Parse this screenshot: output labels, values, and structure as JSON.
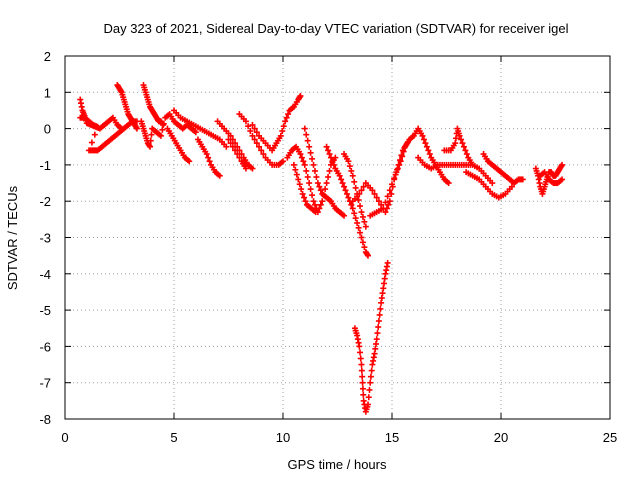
{
  "chart_data": {
    "type": "scatter",
    "title": "Day 323 of 2021, Sidereal Day-to-day VTEC variation (SDTVAR) for receiver igel",
    "xlabel": "GPS time / hours",
    "ylabel": "SDTVAR / TECUs",
    "xlim": [
      0,
      25
    ],
    "ylim": [
      -8,
      2
    ],
    "xticks": [
      0,
      5,
      10,
      15,
      20,
      25
    ],
    "xtick_labels": [
      "0",
      "5",
      "10",
      "15",
      "20",
      "25"
    ],
    "yticks": [
      2,
      1,
      0,
      -1,
      -2,
      -3,
      -4,
      -5,
      -6,
      -7,
      -8
    ],
    "ytick_labels": [
      "2",
      "1",
      "0",
      "-1",
      "-2",
      "-3",
      "-4",
      "-5",
      "-6",
      "-7",
      "-8"
    ],
    "grid": true,
    "marker": "plus",
    "series": [
      {
        "name": "SDTVAR",
        "color": "#ff0000",
        "points": [
          [
            0.7,
            0.8
          ],
          [
            0.8,
            0.5
          ],
          [
            0.9,
            0.35
          ],
          [
            1.0,
            0.15
          ],
          [
            1.2,
            0.1
          ],
          [
            1.4,
            0.05
          ],
          [
            1.6,
            0.0
          ],
          [
            1.8,
            0.1
          ],
          [
            2.0,
            0.2
          ],
          [
            2.2,
            0.3
          ],
          [
            2.4,
            0.1
          ],
          [
            2.6,
            0.0
          ],
          [
            0.7,
            0.3
          ],
          [
            0.9,
            0.3
          ],
          [
            1.1,
            0.2
          ],
          [
            1.3,
            0.1
          ],
          [
            1.5,
            0.05
          ],
          [
            1.1,
            -0.6
          ],
          [
            1.3,
            -0.6
          ],
          [
            1.5,
            -0.6
          ],
          [
            1.7,
            -0.5
          ],
          [
            1.9,
            -0.4
          ],
          [
            2.1,
            -0.3
          ],
          [
            2.3,
            -0.2
          ],
          [
            2.5,
            -0.1
          ],
          [
            2.7,
            0.0
          ],
          [
            2.9,
            0.1
          ],
          [
            3.1,
            0.2
          ],
          [
            3.3,
            0.2
          ],
          [
            2.4,
            1.2
          ],
          [
            2.5,
            1.1
          ],
          [
            2.6,
            1.0
          ],
          [
            2.7,
            0.8
          ],
          [
            2.8,
            0.6
          ],
          [
            2.9,
            0.4
          ],
          [
            3.0,
            0.3
          ],
          [
            3.1,
            0.2
          ],
          [
            3.2,
            0.1
          ],
          [
            3.3,
            0.0
          ],
          [
            3.6,
            1.2
          ],
          [
            3.7,
            1.0
          ],
          [
            3.8,
            0.8
          ],
          [
            3.9,
            0.6
          ],
          [
            4.0,
            0.5
          ],
          [
            4.1,
            0.4
          ],
          [
            4.2,
            0.3
          ],
          [
            4.3,
            0.2
          ],
          [
            4.4,
            0.2
          ],
          [
            4.5,
            0.1
          ],
          [
            3.5,
            0.2
          ],
          [
            3.6,
            0.0
          ],
          [
            3.7,
            -0.2
          ],
          [
            3.8,
            -0.4
          ],
          [
            3.9,
            -0.5
          ],
          [
            4.0,
            0.0
          ],
          [
            4.2,
            -0.1
          ],
          [
            4.4,
            -0.2
          ],
          [
            4.6,
            0.3
          ],
          [
            4.8,
            0.4
          ],
          [
            5.0,
            0.2
          ],
          [
            5.2,
            0.1
          ],
          [
            5.4,
            0.0
          ],
          [
            5.6,
            0.1
          ],
          [
            5.8,
            0.0
          ],
          [
            6.0,
            -0.1
          ],
          [
            4.7,
            0.0
          ],
          [
            4.9,
            -0.2
          ],
          [
            5.1,
            -0.4
          ],
          [
            5.3,
            -0.6
          ],
          [
            5.5,
            -0.8
          ],
          [
            5.7,
            -0.9
          ],
          [
            5.0,
            0.5
          ],
          [
            5.3,
            0.3
          ],
          [
            5.6,
            0.2
          ],
          [
            5.9,
            0.1
          ],
          [
            6.2,
            0.0
          ],
          [
            6.5,
            -0.1
          ],
          [
            6.8,
            -0.2
          ],
          [
            7.1,
            -0.3
          ],
          [
            7.4,
            -0.5
          ],
          [
            6.1,
            -0.3
          ],
          [
            6.3,
            -0.5
          ],
          [
            6.5,
            -0.7
          ],
          [
            6.7,
            -1.0
          ],
          [
            6.9,
            -1.2
          ],
          [
            7.1,
            -1.3
          ],
          [
            7.0,
            0.2
          ],
          [
            7.3,
            0.0
          ],
          [
            7.6,
            -0.2
          ],
          [
            7.9,
            -0.5
          ],
          [
            8.2,
            -0.8
          ],
          [
            8.4,
            -1.0
          ],
          [
            8.6,
            -1.1
          ],
          [
            7.5,
            -0.3
          ],
          [
            7.8,
            -0.6
          ],
          [
            8.1,
            -0.9
          ],
          [
            8.3,
            -1.1
          ],
          [
            8.0,
            0.4
          ],
          [
            8.3,
            0.2
          ],
          [
            8.6,
            -0.2
          ],
          [
            8.9,
            -0.5
          ],
          [
            9.2,
            -0.8
          ],
          [
            9.5,
            -1.0
          ],
          [
            9.8,
            -1.0
          ],
          [
            10.0,
            -0.9
          ],
          [
            8.6,
            0.1
          ],
          [
            8.9,
            -0.2
          ],
          [
            9.2,
            -0.4
          ],
          [
            9.5,
            -0.6
          ],
          [
            9.7,
            -0.4
          ],
          [
            9.9,
            -0.2
          ],
          [
            10.1,
            0.2
          ],
          [
            10.3,
            0.5
          ],
          [
            10.5,
            0.6
          ],
          [
            10.7,
            0.8
          ],
          [
            10.8,
            0.9
          ],
          [
            10.2,
            -0.8
          ],
          [
            10.4,
            -0.6
          ],
          [
            10.6,
            -0.5
          ],
          [
            10.8,
            -0.7
          ],
          [
            11.0,
            -1.0
          ],
          [
            11.2,
            -1.5
          ],
          [
            11.4,
            -2.0
          ],
          [
            11.6,
            -2.3
          ],
          [
            11.8,
            -2.0
          ],
          [
            12.0,
            -1.5
          ],
          [
            12.2,
            -1.0
          ],
          [
            12.4,
            -0.8
          ],
          [
            10.5,
            -1.0
          ],
          [
            10.7,
            -1.4
          ],
          [
            10.9,
            -1.8
          ],
          [
            11.1,
            -2.1
          ],
          [
            11.3,
            -2.2
          ],
          [
            11.5,
            -2.3
          ],
          [
            11.0,
            0.0
          ],
          [
            11.2,
            -0.5
          ],
          [
            11.4,
            -1.0
          ],
          [
            11.6,
            -1.5
          ],
          [
            11.8,
            -1.8
          ],
          [
            12.0,
            -1.9
          ],
          [
            12.2,
            -2.0
          ],
          [
            12.4,
            -2.2
          ],
          [
            12.6,
            -2.3
          ],
          [
            12.8,
            -2.4
          ],
          [
            12.0,
            -0.5
          ],
          [
            12.2,
            -0.8
          ],
          [
            12.4,
            -1.1
          ],
          [
            12.6,
            -1.3
          ],
          [
            12.8,
            -1.6
          ],
          [
            13.0,
            -1.9
          ],
          [
            13.2,
            -2.2
          ],
          [
            13.4,
            -2.6
          ],
          [
            13.6,
            -3.0
          ],
          [
            13.8,
            -3.4
          ],
          [
            13.9,
            -3.5
          ],
          [
            12.8,
            -0.7
          ],
          [
            13.0,
            -0.9
          ],
          [
            13.2,
            -1.3
          ],
          [
            13.4,
            -1.8
          ],
          [
            13.6,
            -2.3
          ],
          [
            13.8,
            -2.7
          ],
          [
            13.3,
            -5.5
          ],
          [
            13.4,
            -5.7
          ],
          [
            13.5,
            -6.0
          ],
          [
            13.6,
            -6.5
          ],
          [
            13.65,
            -7.0
          ],
          [
            13.7,
            -7.5
          ],
          [
            13.8,
            -7.8
          ],
          [
            13.9,
            -7.6
          ],
          [
            14.0,
            -7.0
          ],
          [
            14.1,
            -6.5
          ],
          [
            14.2,
            -6.2
          ],
          [
            14.3,
            -5.8
          ],
          [
            14.4,
            -5.3
          ],
          [
            14.5,
            -4.8
          ],
          [
            14.6,
            -4.4
          ],
          [
            14.7,
            -4.0
          ],
          [
            14.8,
            -3.7
          ],
          [
            13.2,
            -2.0
          ],
          [
            13.5,
            -1.8
          ],
          [
            13.8,
            -1.5
          ],
          [
            14.1,
            -1.7
          ],
          [
            14.4,
            -2.0
          ],
          [
            14.7,
            -2.3
          ],
          [
            14.9,
            -2.0
          ],
          [
            15.1,
            -1.4
          ],
          [
            15.3,
            -1.0
          ],
          [
            15.5,
            -0.6
          ],
          [
            15.7,
            -0.4
          ],
          [
            14.0,
            -2.4
          ],
          [
            14.3,
            -2.3
          ],
          [
            14.6,
            -2.2
          ],
          [
            14.9,
            -1.7
          ],
          [
            15.2,
            -1.2
          ],
          [
            15.4,
            -0.9
          ],
          [
            15.6,
            -0.5
          ],
          [
            15.8,
            -0.3
          ],
          [
            16.0,
            -0.2
          ],
          [
            16.2,
            0.0
          ],
          [
            16.4,
            -0.2
          ],
          [
            16.6,
            -0.5
          ],
          [
            16.8,
            -0.8
          ],
          [
            17.0,
            -1.0
          ],
          [
            17.2,
            -1.2
          ],
          [
            17.4,
            -1.4
          ],
          [
            17.6,
            -1.5
          ],
          [
            16.2,
            -0.8
          ],
          [
            16.5,
            -1.0
          ],
          [
            16.8,
            -1.1
          ],
          [
            17.1,
            -1.0
          ],
          [
            17.4,
            -1.0
          ],
          [
            17.7,
            -1.0
          ],
          [
            18.0,
            -1.0
          ],
          [
            18.3,
            -1.0
          ],
          [
            18.6,
            -1.0
          ],
          [
            17.4,
            -0.6
          ],
          [
            17.7,
            -0.6
          ],
          [
            17.9,
            -0.4
          ],
          [
            18.0,
            0.0
          ],
          [
            18.1,
            -0.2
          ],
          [
            18.3,
            -0.5
          ],
          [
            18.5,
            -0.8
          ],
          [
            18.7,
            -1.0
          ],
          [
            19.0,
            -1.1
          ],
          [
            19.3,
            -1.3
          ],
          [
            19.6,
            -1.5
          ],
          [
            18.4,
            -1.2
          ],
          [
            18.7,
            -1.3
          ],
          [
            19.0,
            -1.4
          ],
          [
            19.3,
            -1.6
          ],
          [
            19.6,
            -1.8
          ],
          [
            19.9,
            -1.9
          ],
          [
            20.2,
            -1.8
          ],
          [
            20.5,
            -1.6
          ],
          [
            19.2,
            -0.7
          ],
          [
            19.4,
            -0.9
          ],
          [
            19.6,
            -1.0
          ],
          [
            19.8,
            -1.1
          ],
          [
            20.0,
            -1.2
          ],
          [
            20.2,
            -1.3
          ],
          [
            20.4,
            -1.4
          ],
          [
            20.6,
            -1.5
          ],
          [
            20.8,
            -1.4
          ],
          [
            21.0,
            -1.4
          ],
          [
            21.6,
            -1.1
          ],
          [
            21.7,
            -1.3
          ],
          [
            21.8,
            -1.6
          ],
          [
            21.9,
            -1.8
          ],
          [
            22.0,
            -1.6
          ],
          [
            22.1,
            -1.4
          ],
          [
            22.2,
            -1.2
          ],
          [
            22.3,
            -1.2
          ],
          [
            22.4,
            -1.3
          ],
          [
            22.5,
            -1.3
          ],
          [
            22.6,
            -1.2
          ],
          [
            22.7,
            -1.1
          ],
          [
            22.8,
            -1.0
          ],
          [
            21.8,
            -1.3
          ],
          [
            22.0,
            -1.2
          ],
          [
            22.2,
            -1.4
          ],
          [
            22.4,
            -1.5
          ],
          [
            22.6,
            -1.5
          ],
          [
            22.8,
            -1.4
          ]
        ]
      }
    ]
  }
}
